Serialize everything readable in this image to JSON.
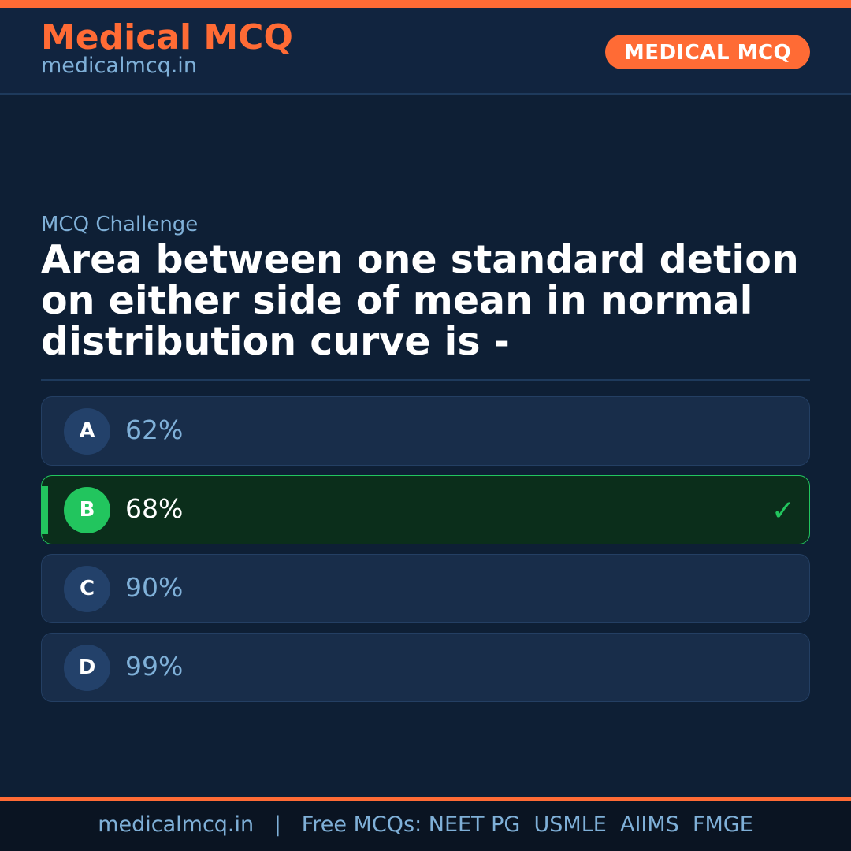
{
  "header": {
    "brand": "Medical MCQ",
    "site": "medicalmcq.in",
    "badge": "MEDICAL MCQ"
  },
  "main": {
    "kicker": "MCQ Challenge",
    "question": "Area between one standard detion on either side of mean in normal distribution curve is -",
    "options": [
      {
        "letter": "A",
        "text": "62%"
      },
      {
        "letter": "B",
        "text": "68%",
        "correct": true
      },
      {
        "letter": "C",
        "text": "90%"
      },
      {
        "letter": "D",
        "text": "99%"
      }
    ],
    "check": "✓"
  },
  "footer": {
    "text": "medicalmcq.in   |   Free MCQs: NEET PG  USMLE  AIIMS  FMGE"
  },
  "colors": {
    "accent": "#ff6b35",
    "correct": "#22c55e",
    "background": "#0e1f35"
  }
}
